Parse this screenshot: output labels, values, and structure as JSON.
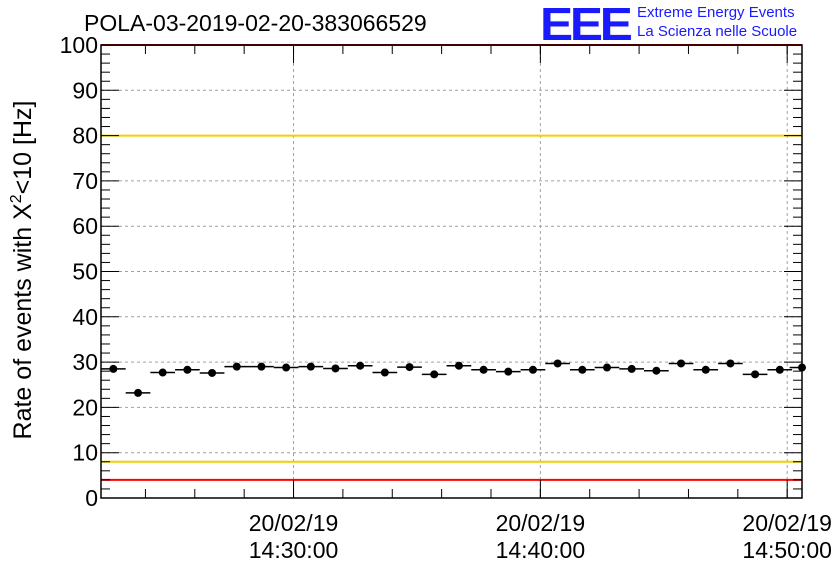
{
  "header": {
    "title": "POLA-03-2019-02-20-383066529",
    "logo_text": "EEE",
    "org_line1": "Extreme Energy Events",
    "org_line2": "La Scienza nelle Scuole"
  },
  "chart_data": {
    "type": "scatter",
    "title": "POLA-03-2019-02-20-383066529",
    "ylabel_pre": "Rate of events with X",
    "ylabel_sup": "2",
    "ylabel_post": "<10 [Hz]",
    "ylim": [
      0,
      100
    ],
    "yticks": [
      "0",
      "10",
      "20",
      "30",
      "40",
      "50",
      "60",
      "70",
      "80",
      "90",
      "100"
    ],
    "xlim_minutes": [
      22.2,
      50.6
    ],
    "xticks": [
      {
        "t": 30,
        "date": "20/02/19",
        "time": "14:30:00"
      },
      {
        "t": 40,
        "date": "20/02/19",
        "time": "14:40:00"
      },
      {
        "t": 50,
        "date": "20/02/19",
        "time": "14:50:00"
      }
    ],
    "grid": true,
    "x_unit": "minutes past 14:00 on 20/02/19",
    "bin_width_minutes": 1,
    "series": [
      {
        "x": [
          22.7,
          23.7,
          24.7,
          25.7,
          26.7,
          27.7,
          28.7,
          29.7,
          30.7,
          31.7,
          32.7,
          33.7,
          34.7,
          35.7,
          36.7,
          37.7,
          38.7,
          39.7,
          40.7,
          41.7,
          42.7,
          43.7,
          44.7,
          45.7,
          46.7,
          47.7,
          48.7,
          49.7,
          50.6
        ],
        "y": [
          28.5,
          23.2,
          27.7,
          28.3,
          27.6,
          29.0,
          29.0,
          28.8,
          29.0,
          28.6,
          29.2,
          27.7,
          28.9,
          27.3,
          29.2,
          28.3,
          27.9,
          28.3,
          29.7,
          28.3,
          28.8,
          28.5,
          28.1,
          29.7,
          28.3,
          29.7,
          27.3,
          28.3,
          28.8
        ]
      }
    ],
    "reference_lines": [
      {
        "y": 80,
        "color": "#f0d000"
      },
      {
        "y": 8,
        "color": "#f0d000"
      },
      {
        "y": 100,
        "color": "#ff0000"
      },
      {
        "y": 4,
        "color": "#ff0000"
      }
    ]
  }
}
